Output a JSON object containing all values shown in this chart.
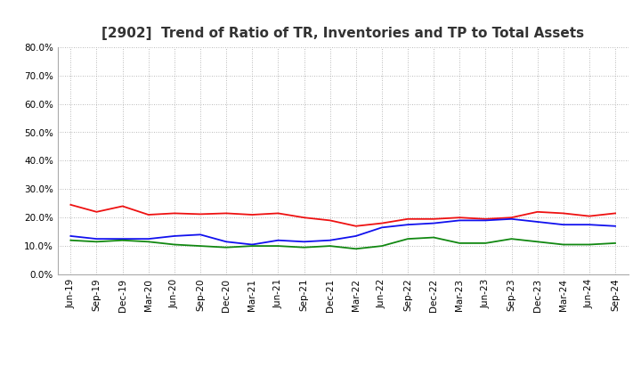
{
  "title": "[2902]  Trend of Ratio of TR, Inventories and TP to Total Assets",
  "x_labels": [
    "Jun-19",
    "Sep-19",
    "Dec-19",
    "Mar-20",
    "Jun-20",
    "Sep-20",
    "Dec-20",
    "Mar-21",
    "Jun-21",
    "Sep-21",
    "Dec-21",
    "Mar-22",
    "Jun-22",
    "Sep-22",
    "Dec-22",
    "Mar-23",
    "Jun-23",
    "Sep-23",
    "Dec-23",
    "Mar-24",
    "Jun-24",
    "Sep-24"
  ],
  "trade_receivables": [
    24.5,
    22.0,
    24.0,
    21.0,
    21.5,
    21.2,
    21.5,
    21.0,
    21.5,
    20.0,
    19.0,
    17.0,
    18.0,
    19.5,
    19.5,
    20.0,
    19.5,
    20.0,
    22.0,
    21.5,
    20.5,
    21.5
  ],
  "inventories": [
    13.5,
    12.5,
    12.5,
    12.5,
    13.5,
    14.0,
    11.5,
    10.5,
    12.0,
    11.5,
    12.0,
    13.5,
    16.5,
    17.5,
    18.0,
    19.0,
    19.0,
    19.5,
    18.5,
    17.5,
    17.5,
    17.0
  ],
  "trade_payables": [
    12.0,
    11.5,
    12.0,
    11.5,
    10.5,
    10.0,
    9.5,
    10.0,
    10.0,
    9.5,
    10.0,
    9.0,
    10.0,
    12.5,
    13.0,
    11.0,
    11.0,
    12.5,
    11.5,
    10.5,
    10.5,
    11.0
  ],
  "colors": {
    "trade_receivables": "#EE1111",
    "inventories": "#1111EE",
    "trade_payables": "#118811"
  },
  "ylim": [
    0,
    80
  ],
  "yticks": [
    0,
    10,
    20,
    30,
    40,
    50,
    60,
    70,
    80
  ],
  "background_color": "#FFFFFF",
  "grid_color": "#999999",
  "title_fontsize": 11,
  "title_color": "#333333",
  "tick_fontsize": 7.5,
  "legend_fontsize": 9
}
